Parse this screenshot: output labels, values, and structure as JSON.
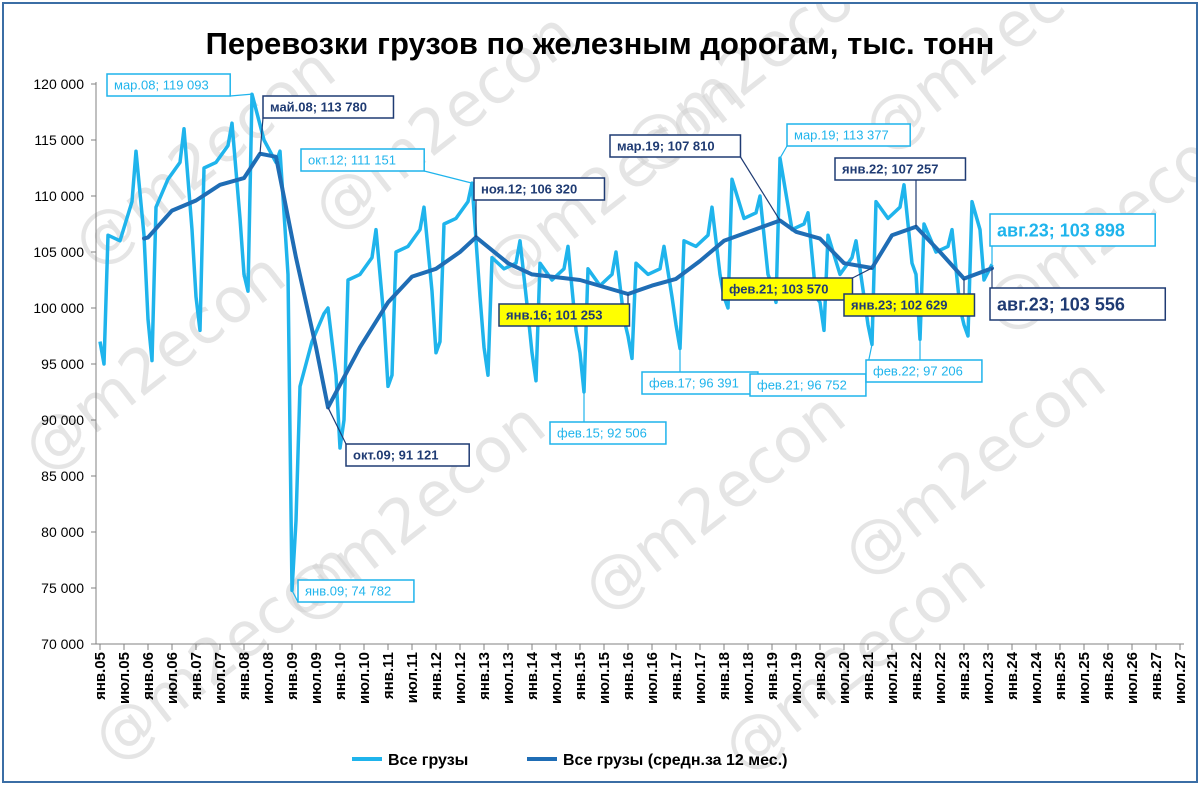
{
  "chart_data": {
    "type": "line",
    "title": "Перевозки грузов по железным дорогам, тыс. тонн",
    "watermark": "@m2econ",
    "ylim": [
      70000,
      120000
    ],
    "y_ticks": [
      "70 000",
      "75 000",
      "80 000",
      "85 000",
      "90 000",
      "95 000",
      "100 000",
      "105 000",
      "110 000",
      "115 000",
      "120 000"
    ],
    "x_ticks": [
      "янв.05",
      "июл.05",
      "янв.06",
      "июл.06",
      "янв.07",
      "июл.07",
      "янв.08",
      "июл.08",
      "янв.09",
      "июл.09",
      "янв.10",
      "июл.10",
      "янв.11",
      "июл.11",
      "янв.12",
      "июл.12",
      "янв.13",
      "июл.13",
      "янв.14",
      "июл.14",
      "янв.15",
      "июл.15",
      "янв.16",
      "июл.16",
      "янв.17",
      "июл.17",
      "янв.18",
      "июл.18",
      "янв.19",
      "июл.19",
      "янв.20",
      "июл.20",
      "янв.21",
      "июл.21",
      "янв.22",
      "июл.22",
      "янв.23",
      "июл.23",
      "янв.24",
      "июл.24",
      "янв.25",
      "июл.25",
      "янв.26",
      "июл.26",
      "янв.27",
      "июл.27"
    ],
    "grid": false,
    "legend_position": "bottom",
    "colors": {
      "monthly": "#1fb4ec",
      "avg": "#1f6db5",
      "dark_label": "#1f3b73",
      "highlight": "#ffff00",
      "frame": "#3b6ea5"
    },
    "series": [
      {
        "name": "Все грузы",
        "anchors": [
          [
            "янв.05",
            97000
          ],
          [
            "фев.05",
            95000
          ],
          [
            "мар.05",
            106500
          ],
          [
            "июн.05",
            106000
          ],
          [
            "сен.05",
            109500
          ],
          [
            "окт.05",
            114000
          ],
          [
            "дек.05",
            106500
          ],
          [
            "янв.06",
            99000
          ],
          [
            "фев.06",
            95300
          ],
          [
            "мар.06",
            109000
          ],
          [
            "июн.06",
            111500
          ],
          [
            "сен.06",
            113000
          ],
          [
            "окт.06",
            116000
          ],
          [
            "дек.06",
            107000
          ],
          [
            "янв.07",
            101000
          ],
          [
            "фев.07",
            98000
          ],
          [
            "мар.07",
            112500
          ],
          [
            "июн.07",
            113000
          ],
          [
            "сен.07",
            114500
          ],
          [
            "окт.07",
            116500
          ],
          [
            "дек.07",
            108000
          ],
          [
            "янв.08",
            103000
          ],
          [
            "фев.08",
            101500
          ],
          [
            "мар.08",
            119093
          ],
          [
            "июн.08",
            115000
          ],
          [
            "сен.08",
            113000
          ],
          [
            "окт.08",
            114000
          ],
          [
            "дек.08",
            103000
          ],
          [
            "янв.09",
            74782
          ],
          [
            "фев.09",
            81000
          ],
          [
            "мар.09",
            93000
          ],
          [
            "июн.09",
            97000
          ],
          [
            "сен.09",
            99500
          ],
          [
            "окт.09",
            100000
          ],
          [
            "дек.09",
            94000
          ],
          [
            "янв.10",
            87500
          ],
          [
            "фев.10",
            90000
          ],
          [
            "мар.10",
            102500
          ],
          [
            "июн.10",
            103000
          ],
          [
            "сен.10",
            104500
          ],
          [
            "окт.10",
            107000
          ],
          [
            "дек.10",
            99000
          ],
          [
            "янв.11",
            93000
          ],
          [
            "фев.11",
            94000
          ],
          [
            "мар.11",
            105000
          ],
          [
            "июн.11",
            105500
          ],
          [
            "сен.11",
            107000
          ],
          [
            "окт.11",
            109000
          ],
          [
            "дек.11",
            101500
          ],
          [
            "янв.12",
            96000
          ],
          [
            "фев.12",
            97000
          ],
          [
            "мар.12",
            107500
          ],
          [
            "июн.12",
            108000
          ],
          [
            "сен.12",
            109500
          ],
          [
            "окт.12",
            111151
          ],
          [
            "дек.12",
            101000
          ],
          [
            "янв.13",
            96500
          ],
          [
            "фев.13",
            94000
          ],
          [
            "мар.13",
            104500
          ],
          [
            "июн.13",
            103500
          ],
          [
            "сен.13",
            104000
          ],
          [
            "окт.13",
            106000
          ],
          [
            "дек.13",
            99500
          ],
          [
            "янв.14",
            96000
          ],
          [
            "фев.14",
            93500
          ],
          [
            "мар.14",
            104000
          ],
          [
            "июн.14",
            102500
          ],
          [
            "сен.14",
            103500
          ],
          [
            "окт.14",
            105500
          ],
          [
            "дек.14",
            98000
          ],
          [
            "янв.15",
            96000
          ],
          [
            "фев.15",
            92506
          ],
          [
            "мар.15",
            103500
          ],
          [
            "июн.15",
            102000
          ],
          [
            "сен.15",
            103000
          ],
          [
            "окт.15",
            105000
          ],
          [
            "дек.15",
            99000
          ],
          [
            "янв.16",
            97500
          ],
          [
            "фев.16",
            95500
          ],
          [
            "мар.16",
            104000
          ],
          [
            "июн.16",
            103000
          ],
          [
            "сен.16",
            103500
          ],
          [
            "окт.16",
            105500
          ],
          [
            "дек.16",
            101000
          ],
          [
            "янв.17",
            98500
          ],
          [
            "фев.17",
            96391
          ],
          [
            "мар.17",
            106000
          ],
          [
            "июн.17",
            105500
          ],
          [
            "сен.17",
            106500
          ],
          [
            "окт.17",
            109000
          ],
          [
            "дек.17",
            103000
          ],
          [
            "янв.18",
            101000
          ],
          [
            "фев.18",
            100000
          ],
          [
            "мар.18",
            111500
          ],
          [
            "июн.18",
            108000
          ],
          [
            "сен.18",
            108500
          ],
          [
            "окт.18",
            110000
          ],
          [
            "дек.18",
            103000
          ],
          [
            "янв.19",
            102000
          ],
          [
            "фев.19",
            100500
          ],
          [
            "мар.19",
            113377
          ],
          [
            "июн.19",
            107000
          ],
          [
            "сен.19",
            107500
          ],
          [
            "окт.19",
            108500
          ],
          [
            "дек.19",
            101000
          ],
          [
            "янв.20",
            100500
          ],
          [
            "фев.20",
            98000
          ],
          [
            "мар.20",
            106500
          ],
          [
            "июн.20",
            103000
          ],
          [
            "сен.20",
            104500
          ],
          [
            "окт.20",
            106000
          ],
          [
            "дек.20",
            101000
          ],
          [
            "янв.21",
            98500
          ],
          [
            "фев.21",
            96752
          ],
          [
            "мар.21",
            109500
          ],
          [
            "июн.21",
            108000
          ],
          [
            "сен.21",
            109000
          ],
          [
            "окт.21",
            111000
          ],
          [
            "дек.21",
            104000
          ],
          [
            "янв.22",
            103000
          ],
          [
            "фев.22",
            97206
          ],
          [
            "мар.22",
            107500
          ],
          [
            "июн.22",
            105000
          ],
          [
            "сен.22",
            105500
          ],
          [
            "окт.22",
            107000
          ],
          [
            "дек.22",
            100000
          ],
          [
            "янв.23",
            98500
          ],
          [
            "фев.23",
            97500
          ],
          [
            "мар.23",
            109500
          ],
          [
            "май.23",
            107000
          ],
          [
            "июн.23",
            102500
          ],
          [
            "авг.23",
            103898
          ]
        ]
      },
      {
        "name": "Все грузы (средн.за 12 мес.)",
        "anchors": [
          [
            "дек.05",
            106200
          ],
          [
            "янв.06",
            106300
          ],
          [
            "июл.06",
            108700
          ],
          [
            "янв.07",
            109600
          ],
          [
            "июл.07",
            111000
          ],
          [
            "янв.08",
            111600
          ],
          [
            "май.08",
            113780
          ],
          [
            "сен.08",
            113500
          ],
          [
            "фев.09",
            104500
          ],
          [
            "июл.09",
            96500
          ],
          [
            "окт.09",
            91121
          ],
          [
            "июн.10",
            96500
          ],
          [
            "янв.11",
            100500
          ],
          [
            "июл.11",
            102800
          ],
          [
            "янв.12",
            103500
          ],
          [
            "июл.12",
            105000
          ],
          [
            "ноя.12",
            106320
          ],
          [
            "июл.13",
            104000
          ],
          [
            "янв.14",
            103000
          ],
          [
            "янв.15",
            102500
          ],
          [
            "янв.16",
            101253
          ],
          [
            "июл.16",
            102000
          ],
          [
            "янв.17",
            102600
          ],
          [
            "июл.17",
            104200
          ],
          [
            "янв.18",
            106000
          ],
          [
            "мар.19",
            107810
          ],
          [
            "июл.19",
            106800
          ],
          [
            "янв.20",
            106200
          ],
          [
            "июл.20",
            104000
          ],
          [
            "фев.21",
            103570
          ],
          [
            "июл.21",
            106500
          ],
          [
            "янв.22",
            107257
          ],
          [
            "июл.22",
            105000
          ],
          [
            "янв.23",
            102629
          ],
          [
            "авг.23",
            103556
          ]
        ]
      }
    ],
    "annotations": [
      {
        "id": "a1",
        "text": "мар.08; 119 093",
        "x": "мар.08",
        "y": 119093,
        "style": "light"
      },
      {
        "id": "a2",
        "text": "май.08;  113 780",
        "x": "май.08",
        "y": 113780,
        "style": "dark"
      },
      {
        "id": "a3",
        "text": "окт.12; 111 151",
        "x": "окт.12",
        "y": 111151,
        "style": "light"
      },
      {
        "id": "a4",
        "text": "ноя.12;  106 320",
        "x": "ноя.12",
        "y": 106320,
        "style": "dark"
      },
      {
        "id": "a5",
        "text": "мар.19;  107 810",
        "x": "мар.19",
        "y": 107810,
        "style": "dark"
      },
      {
        "id": "a6",
        "text": "мар.19; 113 377",
        "x": "мар.19",
        "y": 113377,
        "style": "light"
      },
      {
        "id": "a7",
        "text": "янв.22;  107 257",
        "x": "янв.22",
        "y": 107257,
        "style": "dark"
      },
      {
        "id": "a8",
        "text": "авг.23; 103 898",
        "x": "авг.23",
        "y": 103898,
        "style": "light-big"
      },
      {
        "id": "a9",
        "text": "авг.23;  103 556",
        "x": "авг.23",
        "y": 103556,
        "style": "dark-big"
      },
      {
        "id": "a10",
        "text": "фев.21;  103 570",
        "x": "фев.21",
        "y": 103570,
        "style": "yellow"
      },
      {
        "id": "a11",
        "text": "янв.23;  102 629",
        "x": "янв.23",
        "y": 102629,
        "style": "yellow"
      },
      {
        "id": "a12",
        "text": "янв.16;  101 253",
        "x": "янв.16",
        "y": 101253,
        "style": "yellow"
      },
      {
        "id": "a13",
        "text": "фев.17; 96 391",
        "x": "фев.17",
        "y": 96391,
        "style": "light"
      },
      {
        "id": "a14",
        "text": "фев.21; 96 752",
        "x": "фев.21",
        "y": 96752,
        "style": "light"
      },
      {
        "id": "a15",
        "text": "фев.22; 97 206",
        "x": "фев.22",
        "y": 97206,
        "style": "light"
      },
      {
        "id": "a16",
        "text": "фев.15; 92 506",
        "x": "фев.15",
        "y": 92506,
        "style": "light"
      },
      {
        "id": "a17",
        "text": "окт.09;  91 121",
        "x": "окт.09",
        "y": 91121,
        "style": "dark"
      },
      {
        "id": "a18",
        "text": "янв.09; 74 782",
        "x": "янв.09",
        "y": 74782,
        "style": "light"
      }
    ]
  }
}
